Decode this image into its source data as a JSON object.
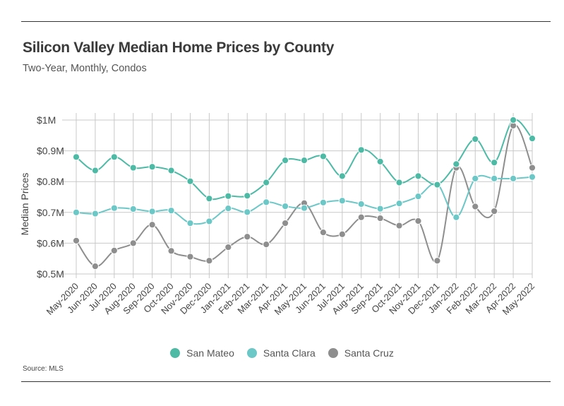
{
  "title": "Silicon Valley Median Home Prices by County",
  "subtitle": "Two-Year, Monthly, Condos",
  "source": "Source: MLS",
  "chart_data": {
    "type": "line",
    "title": "Silicon Valley Median Home Prices by County",
    "subtitle": "Two-Year, Monthly, Condos",
    "xlabel": "",
    "ylabel": "Median Prices",
    "ylim": [
      0.5,
      1.0
    ],
    "yticks": [
      0.5,
      0.6,
      0.7,
      0.8,
      0.9,
      1.0
    ],
    "ytick_labels": [
      "$0.5M",
      "$0.6M",
      "$0.7M",
      "$0.8M",
      "$0.9M",
      "$1M"
    ],
    "grid": true,
    "legend_position": "bottom-center",
    "categories": [
      "May-2020",
      "Jun-2020",
      "Jul-2020",
      "Aug-2020",
      "Sep-2020",
      "Oct-2020",
      "Nov-2020",
      "Dec-2020",
      "Jan-2021",
      "Feb-2021",
      "Mar-2021",
      "Apr-2021",
      "May-2021",
      "Jun-2021",
      "Jul-2021",
      "Aug-2021",
      "Sep-2021",
      "Oct-2021",
      "Nov-2021",
      "Dec-2021",
      "Jan-2022",
      "Feb-2022",
      "Mar-2022",
      "Apr-2022",
      "May-2022"
    ],
    "series": [
      {
        "name": "San Mateo",
        "color": "#4dbaa6",
        "values": [
          0.88,
          0.836,
          0.88,
          0.845,
          0.848,
          0.836,
          0.801,
          0.745,
          0.753,
          0.754,
          0.797,
          0.869,
          0.869,
          0.882,
          0.818,
          0.903,
          0.865,
          0.797,
          0.818,
          0.79,
          0.857,
          0.938,
          0.862,
          1.0,
          0.94
        ]
      },
      {
        "name": "Santa Clara",
        "color": "#6cc7c7",
        "values": [
          0.7,
          0.696,
          0.714,
          0.711,
          0.703,
          0.706,
          0.665,
          0.671,
          0.713,
          0.701,
          0.733,
          0.72,
          0.714,
          0.732,
          0.738,
          0.727,
          0.712,
          0.729,
          0.752,
          0.792,
          0.684,
          0.81,
          0.81,
          0.81,
          0.815
        ]
      },
      {
        "name": "Santa Cruz",
        "color": "#8e8e8e",
        "values": [
          0.608,
          0.525,
          0.576,
          0.6,
          0.66,
          0.575,
          0.556,
          0.543,
          0.587,
          0.621,
          0.596,
          0.665,
          0.73,
          0.635,
          0.629,
          0.684,
          0.681,
          0.657,
          0.672,
          0.543,
          0.845,
          0.719,
          0.704,
          0.982,
          0.845
        ]
      }
    ]
  }
}
